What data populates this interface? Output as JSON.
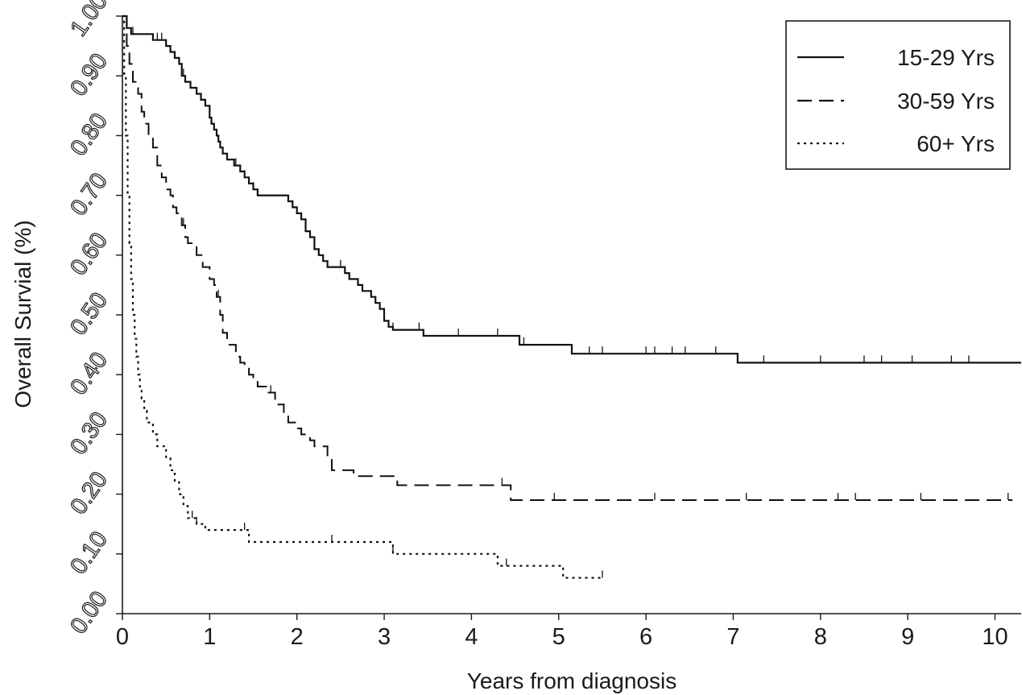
{
  "chart_data": {
    "type": "line",
    "title": "",
    "xlabel": "Years from diagnosis",
    "ylabel": "Overall Survial (%)",
    "xlim": [
      0,
      10.3
    ],
    "ylim": [
      0,
      1.0
    ],
    "x_ticks": [
      "0",
      "1",
      "2",
      "3",
      "4",
      "5",
      "6",
      "7",
      "8",
      "9",
      "10"
    ],
    "y_ticks": [
      "0.00",
      "0.10",
      "0.20",
      "0.30",
      "0.40",
      "0.50",
      "0.60",
      "0.70",
      "0.80",
      "0.90",
      "1.00"
    ],
    "grid": false,
    "legend_position": "top-right",
    "series": [
      {
        "name": "15-29 Yrs",
        "style": "solid",
        "points": [
          [
            0,
            1.0
          ],
          [
            0.05,
            0.98
          ],
          [
            0.1,
            0.97
          ],
          [
            0.3,
            0.97
          ],
          [
            0.35,
            0.96
          ],
          [
            0.45,
            0.96
          ],
          [
            0.5,
            0.95
          ],
          [
            0.55,
            0.94
          ],
          [
            0.6,
            0.93
          ],
          [
            0.65,
            0.92
          ],
          [
            0.68,
            0.9
          ],
          [
            0.72,
            0.89
          ],
          [
            0.78,
            0.88
          ],
          [
            0.85,
            0.87
          ],
          [
            0.9,
            0.86
          ],
          [
            0.95,
            0.85
          ],
          [
            1.0,
            0.83
          ],
          [
            1.02,
            0.82
          ],
          [
            1.05,
            0.81
          ],
          [
            1.08,
            0.8
          ],
          [
            1.1,
            0.79
          ],
          [
            1.12,
            0.78
          ],
          [
            1.15,
            0.77
          ],
          [
            1.2,
            0.76
          ],
          [
            1.28,
            0.75
          ],
          [
            1.35,
            0.74
          ],
          [
            1.4,
            0.73
          ],
          [
            1.45,
            0.72
          ],
          [
            1.5,
            0.71
          ],
          [
            1.55,
            0.7
          ],
          [
            1.85,
            0.7
          ],
          [
            1.9,
            0.69
          ],
          [
            1.95,
            0.68
          ],
          [
            2.0,
            0.67
          ],
          [
            2.05,
            0.66
          ],
          [
            2.1,
            0.64
          ],
          [
            2.15,
            0.63
          ],
          [
            2.2,
            0.61
          ],
          [
            2.25,
            0.6
          ],
          [
            2.3,
            0.59
          ],
          [
            2.35,
            0.58
          ],
          [
            2.5,
            0.58
          ],
          [
            2.55,
            0.57
          ],
          [
            2.6,
            0.56
          ],
          [
            2.7,
            0.55
          ],
          [
            2.75,
            0.54
          ],
          [
            2.85,
            0.53
          ],
          [
            2.9,
            0.52
          ],
          [
            2.95,
            0.51
          ],
          [
            3.0,
            0.49
          ],
          [
            3.05,
            0.48
          ],
          [
            3.1,
            0.475
          ],
          [
            3.4,
            0.475
          ],
          [
            3.45,
            0.465
          ],
          [
            4.5,
            0.465
          ],
          [
            4.55,
            0.45
          ],
          [
            5.1,
            0.45
          ],
          [
            5.15,
            0.435
          ],
          [
            7.0,
            0.435
          ],
          [
            7.05,
            0.42
          ],
          [
            10.3,
            0.42
          ]
        ],
        "censors": [
          0.12,
          0.4,
          0.45,
          0.7,
          1.3,
          1.4,
          1.5,
          2.1,
          2.5,
          3.0,
          3.1,
          3.4,
          3.85,
          4.3,
          4.6,
          5.35,
          5.5,
          6.0,
          6.1,
          6.3,
          6.45,
          6.8,
          7.35,
          8.0,
          8.5,
          8.7,
          9.05,
          9.5,
          9.7
        ]
      },
      {
        "name": "30-59 Yrs",
        "style": "dashed",
        "points": [
          [
            0,
            1.0
          ],
          [
            0.05,
            0.95
          ],
          [
            0.08,
            0.92
          ],
          [
            0.12,
            0.89
          ],
          [
            0.18,
            0.87
          ],
          [
            0.22,
            0.84
          ],
          [
            0.25,
            0.82
          ],
          [
            0.3,
            0.8
          ],
          [
            0.35,
            0.78
          ],
          [
            0.4,
            0.75
          ],
          [
            0.45,
            0.73
          ],
          [
            0.5,
            0.71
          ],
          [
            0.55,
            0.7
          ],
          [
            0.58,
            0.68
          ],
          [
            0.62,
            0.67
          ],
          [
            0.68,
            0.65
          ],
          [
            0.72,
            0.63
          ],
          [
            0.75,
            0.62
          ],
          [
            0.85,
            0.6
          ],
          [
            0.92,
            0.58
          ],
          [
            1.0,
            0.56
          ],
          [
            1.05,
            0.55
          ],
          [
            1.08,
            0.53
          ],
          [
            1.12,
            0.5
          ],
          [
            1.15,
            0.47
          ],
          [
            1.2,
            0.45
          ],
          [
            1.3,
            0.43
          ],
          [
            1.35,
            0.42
          ],
          [
            1.4,
            0.41
          ],
          [
            1.45,
            0.4
          ],
          [
            1.5,
            0.39
          ],
          [
            1.55,
            0.38
          ],
          [
            1.65,
            0.37
          ],
          [
            1.75,
            0.35
          ],
          [
            1.85,
            0.33
          ],
          [
            1.9,
            0.32
          ],
          [
            2.0,
            0.31
          ],
          [
            2.05,
            0.3
          ],
          [
            2.15,
            0.29
          ],
          [
            2.2,
            0.28
          ],
          [
            2.35,
            0.26
          ],
          [
            2.4,
            0.24
          ],
          [
            2.6,
            0.24
          ],
          [
            2.65,
            0.23
          ],
          [
            3.1,
            0.23
          ],
          [
            3.15,
            0.215
          ],
          [
            4.4,
            0.215
          ],
          [
            4.45,
            0.19
          ],
          [
            10.2,
            0.19
          ]
        ],
        "censors": [
          0.7,
          1.1,
          1.7,
          2.4,
          4.35,
          4.95,
          6.1,
          7.15,
          8.2,
          8.4,
          9.15,
          10.15
        ]
      },
      {
        "name": "60+ Yrs",
        "style": "dotted",
        "points": [
          [
            0,
            1.0
          ],
          [
            0.02,
            0.9
          ],
          [
            0.04,
            0.8
          ],
          [
            0.06,
            0.7
          ],
          [
            0.08,
            0.62
          ],
          [
            0.1,
            0.56
          ],
          [
            0.12,
            0.5
          ],
          [
            0.14,
            0.46
          ],
          [
            0.16,
            0.43
          ],
          [
            0.18,
            0.4
          ],
          [
            0.2,
            0.38
          ],
          [
            0.22,
            0.36
          ],
          [
            0.25,
            0.34
          ],
          [
            0.28,
            0.32
          ],
          [
            0.35,
            0.3
          ],
          [
            0.4,
            0.28
          ],
          [
            0.5,
            0.26
          ],
          [
            0.55,
            0.24
          ],
          [
            0.6,
            0.22
          ],
          [
            0.65,
            0.2
          ],
          [
            0.7,
            0.18
          ],
          [
            0.75,
            0.16
          ],
          [
            0.85,
            0.15
          ],
          [
            0.95,
            0.14
          ],
          [
            1.4,
            0.14
          ],
          [
            1.45,
            0.12
          ],
          [
            3.05,
            0.12
          ],
          [
            3.1,
            0.1
          ],
          [
            4.25,
            0.1
          ],
          [
            4.3,
            0.08
          ],
          [
            5.0,
            0.08
          ],
          [
            5.05,
            0.06
          ],
          [
            5.5,
            0.06
          ]
        ],
        "censors": [
          0.8,
          0.85,
          1.4,
          2.4,
          3.1,
          4.4,
          5.5
        ]
      }
    ]
  }
}
